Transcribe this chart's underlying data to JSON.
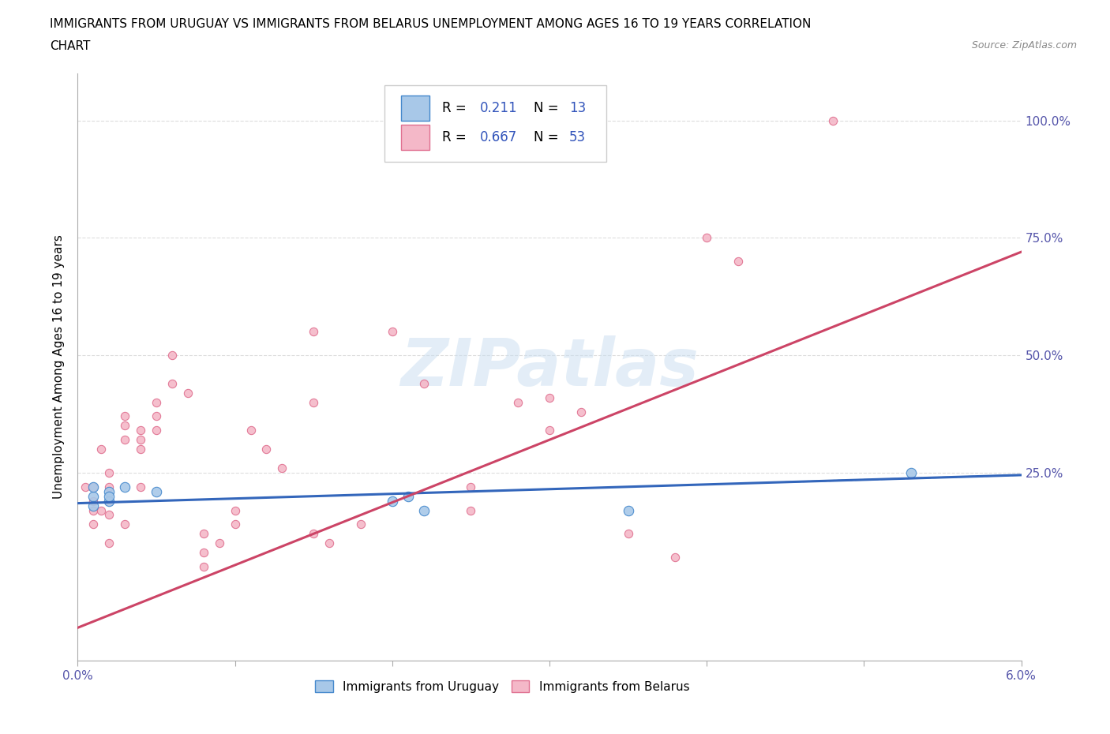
{
  "title_line1": "IMMIGRANTS FROM URUGUAY VS IMMIGRANTS FROM BELARUS UNEMPLOYMENT AMONG AGES 16 TO 19 YEARS CORRELATION",
  "title_line2": "CHART",
  "source": "Source: ZipAtlas.com",
  "ylabel": "Unemployment Among Ages 16 to 19 years",
  "xlim": [
    0.0,
    0.06
  ],
  "ylim": [
    -0.15,
    1.1
  ],
  "xticks": [
    0.0,
    0.01,
    0.02,
    0.03,
    0.04,
    0.05,
    0.06
  ],
  "xtick_labels": [
    "0.0%",
    "",
    "",
    "",
    "",
    "",
    "6.0%"
  ],
  "ytick_right_labels": [
    "100.0%",
    "75.0%",
    "50.0%",
    "25.0%"
  ],
  "ytick_right_vals": [
    1.0,
    0.75,
    0.5,
    0.25
  ],
  "watermark": "ZIPatlas",
  "uruguay_color": "#a8c8e8",
  "belarus_color": "#f4b8c8",
  "uruguay_edge_color": "#4488cc",
  "belarus_edge_color": "#e07090",
  "uruguay_line_color": "#3366bb",
  "belarus_line_color": "#cc4466",
  "uruguay_scatter": [
    [
      0.001,
      0.2
    ],
    [
      0.001,
      0.18
    ],
    [
      0.001,
      0.22
    ],
    [
      0.002,
      0.19
    ],
    [
      0.002,
      0.21
    ],
    [
      0.002,
      0.2
    ],
    [
      0.003,
      0.22
    ],
    [
      0.005,
      0.21
    ],
    [
      0.02,
      0.19
    ],
    [
      0.021,
      0.2
    ],
    [
      0.022,
      0.17
    ],
    [
      0.035,
      0.17
    ],
    [
      0.053,
      0.25
    ]
  ],
  "belarus_scatter": [
    [
      0.0005,
      0.22
    ],
    [
      0.001,
      0.19
    ],
    [
      0.001,
      0.17
    ],
    [
      0.001,
      0.14
    ],
    [
      0.001,
      0.22
    ],
    [
      0.0015,
      0.17
    ],
    [
      0.0015,
      0.3
    ],
    [
      0.002,
      0.22
    ],
    [
      0.002,
      0.25
    ],
    [
      0.002,
      0.1
    ],
    [
      0.002,
      0.16
    ],
    [
      0.002,
      0.19
    ],
    [
      0.003,
      0.14
    ],
    [
      0.003,
      0.32
    ],
    [
      0.003,
      0.35
    ],
    [
      0.003,
      0.37
    ],
    [
      0.004,
      0.34
    ],
    [
      0.004,
      0.32
    ],
    [
      0.004,
      0.3
    ],
    [
      0.004,
      0.22
    ],
    [
      0.005,
      0.37
    ],
    [
      0.005,
      0.34
    ],
    [
      0.005,
      0.4
    ],
    [
      0.006,
      0.5
    ],
    [
      0.006,
      0.44
    ],
    [
      0.007,
      0.42
    ],
    [
      0.008,
      0.05
    ],
    [
      0.008,
      0.08
    ],
    [
      0.008,
      0.12
    ],
    [
      0.009,
      0.1
    ],
    [
      0.01,
      0.14
    ],
    [
      0.01,
      0.17
    ],
    [
      0.011,
      0.34
    ],
    [
      0.012,
      0.3
    ],
    [
      0.013,
      0.26
    ],
    [
      0.015,
      0.55
    ],
    [
      0.015,
      0.4
    ],
    [
      0.015,
      0.12
    ],
    [
      0.016,
      0.1
    ],
    [
      0.018,
      0.14
    ],
    [
      0.02,
      0.55
    ],
    [
      0.022,
      0.44
    ],
    [
      0.025,
      0.22
    ],
    [
      0.025,
      0.17
    ],
    [
      0.028,
      0.4
    ],
    [
      0.03,
      0.41
    ],
    [
      0.03,
      0.34
    ],
    [
      0.032,
      0.38
    ],
    [
      0.035,
      0.12
    ],
    [
      0.038,
      0.07
    ],
    [
      0.04,
      0.75
    ],
    [
      0.042,
      0.7
    ],
    [
      0.048,
      1.0
    ]
  ],
  "uruguay_trendline": [
    [
      0.0,
      0.185
    ],
    [
      0.06,
      0.245
    ]
  ],
  "belarus_trendline": [
    [
      0.0,
      -0.08
    ],
    [
      0.06,
      0.72
    ]
  ],
  "dot_size_uruguay": 80,
  "dot_size_belarus": 55,
  "source_color": "#888888",
  "tick_color": "#5555aa",
  "grid_color": "#dddddd",
  "watermark_color": "#c8ddf0",
  "watermark_alpha": 0.5,
  "bottom_legend_labels": [
    "Immigrants from Uruguay",
    "Immigrants from Belarus"
  ]
}
